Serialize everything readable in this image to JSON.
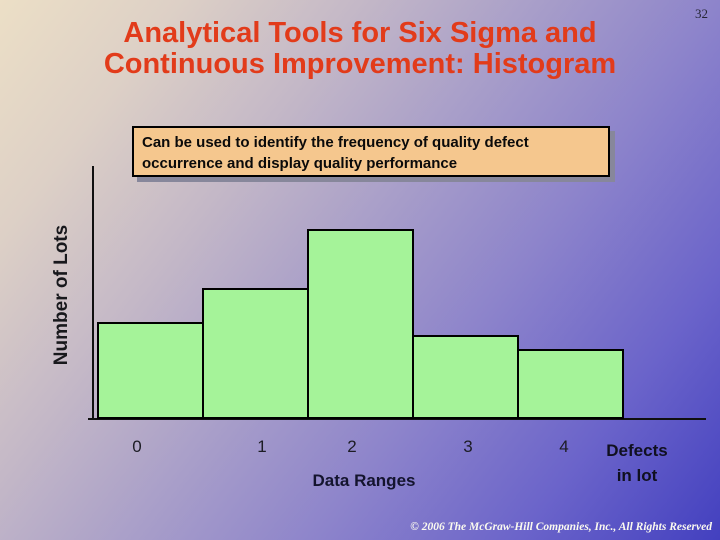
{
  "page_number": "32",
  "title": {
    "line1": "Analytical Tools for Six Sigma and",
    "line2": "Continuous Improvement: Histogram",
    "color": "#e23b1a"
  },
  "callout": {
    "line1": "Can be used to identify the frequency of quality defect",
    "line2": "occurrence and display quality performance",
    "bg_color": "#f5c78e"
  },
  "chart_data": {
    "type": "bar",
    "title": "",
    "categories": [
      "0",
      "1",
      "2",
      "3",
      "4"
    ],
    "values_relative": [
      0.51,
      0.69,
      1.0,
      0.44,
      0.37
    ],
    "ylabel": "Number of Lots",
    "xlabel": "Data Ranges",
    "x_series_note": "Defects in lot",
    "bar_color": "#a5f399",
    "y_axis_ticks": "none",
    "grid": false,
    "legend": "none"
  },
  "x_series_note": {
    "line1": "Defects",
    "line2": "in lot"
  },
  "footer": {
    "copyright": "© 2006 The McGraw-Hill Companies, Inc., All Rights Reserved"
  }
}
